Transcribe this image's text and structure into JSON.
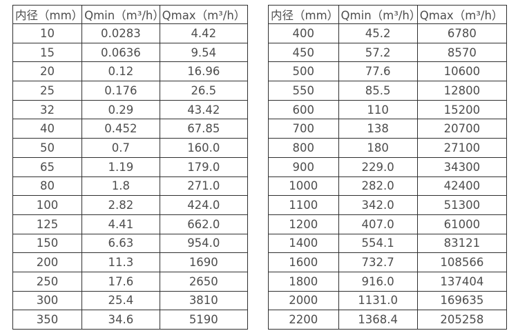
{
  "colors": {
    "background": "#ffffff",
    "border": "#2e2e2e",
    "text": "#4d4d4d"
  },
  "tables": [
    {
      "name": "small-diameter-flow-rates",
      "headers": [
        "内径（mm）",
        "Qmin（m³/h）",
        "Qmax（m³/h）"
      ],
      "rows": [
        [
          "10",
          "0.0283",
          "4.42"
        ],
        [
          "15",
          "0.0636",
          "9.54"
        ],
        [
          "20",
          "0.12",
          "16.96"
        ],
        [
          "25",
          "0.176",
          "26.5"
        ],
        [
          "32",
          "0.29",
          "43.42"
        ],
        [
          "40",
          "0.452",
          "67.85"
        ],
        [
          "50",
          "0.7",
          "160.0"
        ],
        [
          "65",
          "1.19",
          "179.0"
        ],
        [
          "80",
          "1.8",
          "271.0"
        ],
        [
          "100",
          "2.82",
          "424.0"
        ],
        [
          "125",
          "4.41",
          "662.0"
        ],
        [
          "150",
          "6.63",
          "954.0"
        ],
        [
          "200",
          "11.3",
          "1690"
        ],
        [
          "250",
          "17.6",
          "2650"
        ],
        [
          "300",
          "25.4",
          "3810"
        ],
        [
          "350",
          "34.6",
          "5190"
        ]
      ]
    },
    {
      "name": "large-diameter-flow-rates",
      "headers": [
        "内径（mm）",
        "Qmin（m³/h）",
        "Qmax（m³/h）"
      ],
      "rows": [
        [
          "400",
          "45.2",
          "6780"
        ],
        [
          "450",
          "57.2",
          "8570"
        ],
        [
          "500",
          "77.6",
          "10600"
        ],
        [
          "550",
          "85.5",
          "12800"
        ],
        [
          "600",
          "110",
          "15200"
        ],
        [
          "700",
          "138",
          "20700"
        ],
        [
          "800",
          "180",
          "27100"
        ],
        [
          "900",
          "229.0",
          "34300"
        ],
        [
          "1000",
          "282.0",
          "42400"
        ],
        [
          "1100",
          "342.0",
          "51300"
        ],
        [
          "1200",
          "407.0",
          "61000"
        ],
        [
          "1400",
          "554.1",
          "83121"
        ],
        [
          "1600",
          "732.7",
          "108566"
        ],
        [
          "1800",
          "916.0",
          "137404"
        ],
        [
          "2000",
          "1131.0",
          "169635"
        ],
        [
          "2200",
          "1368.4",
          "205258"
        ]
      ]
    }
  ]
}
